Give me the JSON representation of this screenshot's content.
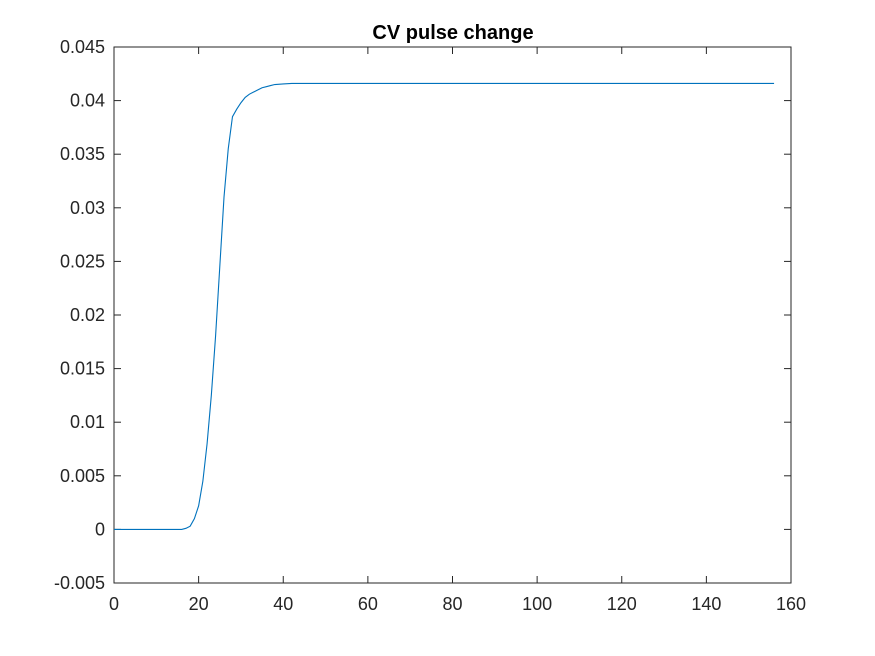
{
  "chart_data": {
    "type": "line",
    "title": "CV pulse change",
    "xlabel": "",
    "ylabel": "",
    "xlim": [
      0,
      160
    ],
    "ylim": [
      -0.005,
      0.045
    ],
    "xticks": [
      0,
      20,
      40,
      60,
      80,
      100,
      120,
      140,
      160
    ],
    "xtick_labels": [
      "0",
      "20",
      "40",
      "60",
      "80",
      "100",
      "120",
      "140",
      "160"
    ],
    "yticks": [
      -0.005,
      0,
      0.005,
      0.01,
      0.015,
      0.02,
      0.025,
      0.03,
      0.035,
      0.04,
      0.045
    ],
    "ytick_labels": [
      "-0.005",
      "0",
      "0.005",
      "0.01",
      "0.015",
      "0.02",
      "0.025",
      "0.03",
      "0.035",
      "0.04",
      "0.045"
    ],
    "grid": false,
    "series": [
      {
        "color": "#0072BD",
        "x": [
          0,
          5,
          10,
          15,
          16,
          17,
          18,
          19,
          20,
          21,
          22,
          23,
          24,
          25,
          26,
          27,
          28,
          29,
          30,
          31,
          32,
          33,
          34,
          35,
          36,
          37,
          38,
          40,
          42,
          45,
          50,
          60,
          80,
          100,
          120,
          140,
          156
        ],
        "y": [
          0,
          0,
          0,
          0,
          0,
          0.0001,
          0.0003,
          0.001,
          0.0022,
          0.0045,
          0.008,
          0.0125,
          0.018,
          0.0245,
          0.031,
          0.0355,
          0.0385,
          0.0392,
          0.0398,
          0.0403,
          0.0406,
          0.0408,
          0.041,
          0.0412,
          0.0413,
          0.0414,
          0.0415,
          0.04155,
          0.0416,
          0.0416,
          0.0416,
          0.0416,
          0.0416,
          0.0416,
          0.0416,
          0.0416,
          0.0416
        ]
      }
    ]
  }
}
